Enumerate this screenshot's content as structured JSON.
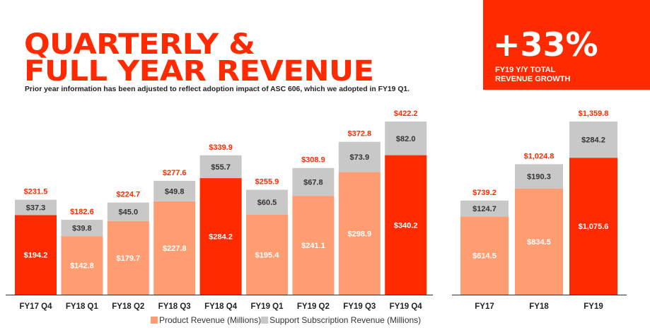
{
  "header": {
    "title_line1": "QUARTERLY &",
    "title_line2": "FULL YEAR REVENUE",
    "subtitle": "Prior year information has been adjusted to reflect adoption impact of ASC 606, which we adopted in FY19 Q1."
  },
  "growth": {
    "value": "+33%",
    "label_line1": "FY19 Y/Y TOTAL",
    "label_line2": "REVENUE GROWTH"
  },
  "colors": {
    "accent": "#ff2a00",
    "product": "#ff9d72",
    "support": "#c8c8c8",
    "total_label": "#ff2a00",
    "axis": "#333333"
  },
  "chart_data": [
    {
      "type": "bar",
      "stacked": true,
      "categories": [
        "FY17 Q4",
        "FY18 Q1",
        "FY18 Q2",
        "FY18 Q3",
        "FY18 Q4",
        "FY19 Q1",
        "FY19 Q2",
        "FY19 Q3",
        "FY19 Q4"
      ],
      "series": [
        {
          "name": "Product Revenue (Millions)",
          "values": [
            194.2,
            142.8,
            179.7,
            227.8,
            284.2,
            195.4,
            241.1,
            298.9,
            340.2
          ]
        },
        {
          "name": "Support Subscription Revenue (Millions)",
          "values": [
            37.3,
            39.8,
            45.0,
            49.8,
            55.7,
            60.5,
            67.8,
            73.9,
            82.0
          ]
        }
      ],
      "product_labels": [
        "$194.2",
        "$142.8",
        "$179.7",
        "$227.8",
        "$284.2",
        "$195.4",
        "$241.1",
        "$298.9",
        "$340.2"
      ],
      "support_labels": [
        "$37.3",
        "$39.8",
        "$45.0",
        "$49.8",
        "$55.7",
        "$60.5",
        "$67.8",
        "$73.9",
        "$82.0"
      ],
      "totals": [
        "$231.5",
        "$182.6",
        "$224.7",
        "$277.6",
        "$339.9",
        "$255.9",
        "$308.9",
        "$372.8",
        "$422.2"
      ],
      "highlight": [
        true,
        false,
        false,
        false,
        true,
        false,
        false,
        false,
        true
      ],
      "ylim": [
        0,
        422.2
      ]
    },
    {
      "type": "bar",
      "stacked": true,
      "categories": [
        "FY17",
        "FY18",
        "FY19"
      ],
      "series": [
        {
          "name": "Product Revenue (Millions)",
          "values": [
            614.5,
            834.5,
            1075.6
          ]
        },
        {
          "name": "Support Subscription Revenue (Millions)",
          "values": [
            124.7,
            190.3,
            284.2
          ]
        }
      ],
      "product_labels": [
        "$614.5",
        "$834.5",
        "$1,075.6"
      ],
      "support_labels": [
        "$124.7",
        "$190.3",
        "$284.2"
      ],
      "totals": [
        "$739.2",
        "$1,024.8",
        "$1,359.8"
      ],
      "highlight": [
        false,
        false,
        true
      ],
      "ylim": [
        0,
        1359.8
      ]
    }
  ],
  "legend": {
    "product": "Product Revenue (Millions)",
    "support": "Support Subscription Revenue (Millions)"
  }
}
